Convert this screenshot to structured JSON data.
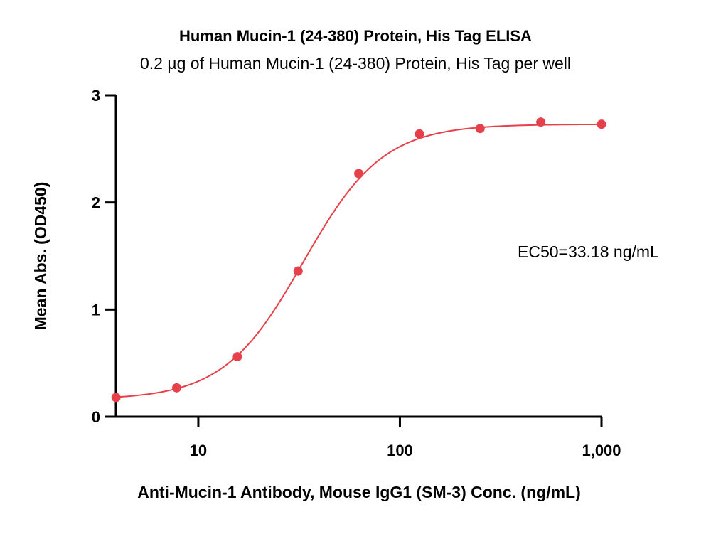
{
  "chart_data": {
    "type": "scatter",
    "title": "Human Mucin-1 (24-380) Protein, His Tag ELISA",
    "subtitle": "0.2 µg of Human Mucin-1 (24-380) Protein, His Tag per well",
    "xlabel": "Anti-Mucin-1 Antibody, Mouse IgG1 (SM-3) Conc. (ng/mL)",
    "ylabel": "Mean Abs. (OD450)",
    "x_scale": "log",
    "xlim": [
      3.9,
      1000
    ],
    "ylim": [
      0,
      3
    ],
    "x_ticks": [
      10,
      100,
      1000
    ],
    "x_tick_labels": [
      "10",
      "100",
      "1,000"
    ],
    "y_ticks": [
      0,
      1,
      2,
      3
    ],
    "y_tick_labels": [
      "0",
      "1",
      "2",
      "3"
    ],
    "grid": false,
    "annotation": "EC50=33.18 ng/mL",
    "series": [
      {
        "color": "#e8404a",
        "x": [
          3.906,
          7.8125,
          15.625,
          31.25,
          62.5,
          125,
          250,
          500,
          1000
        ],
        "y": [
          0.18,
          0.27,
          0.56,
          1.36,
          2.27,
          2.64,
          2.69,
          2.75,
          2.73
        ]
      }
    ],
    "fit": {
      "bottom": 0.16,
      "top": 2.73,
      "ec50": 33.18,
      "hill": 2.2
    }
  }
}
